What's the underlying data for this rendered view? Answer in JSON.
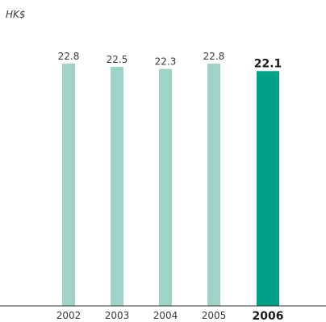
{
  "chart_data": {
    "type": "bar",
    "unit_label": "HK$",
    "categories": [
      "2002",
      "2003",
      "2004",
      "2005",
      "2006"
    ],
    "values": [
      22.8,
      22.5,
      22.3,
      22.8,
      22.1
    ],
    "value_labels": [
      "22.8",
      "22.5",
      "22.3",
      "22.8",
      "22.1"
    ],
    "highlight_index": 4,
    "ylim": [
      0,
      25
    ],
    "grid": false,
    "colors": {
      "bar": "#9fd3c7",
      "highlight_bar": "#00a187",
      "axis": "#333333"
    }
  }
}
